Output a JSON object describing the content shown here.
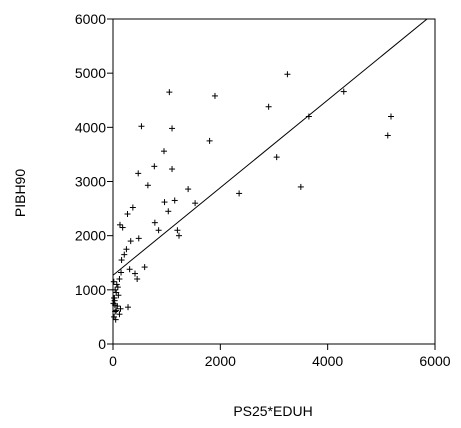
{
  "chart_data": {
    "type": "scatter",
    "title": "",
    "xlabel": "PS25*EDUH",
    "ylabel": "PIBH90",
    "xlim": [
      0,
      6000
    ],
    "ylim": [
      0,
      6000
    ],
    "x_ticks": [
      0,
      2000,
      4000,
      6000
    ],
    "y_ticks": [
      0,
      1000,
      2000,
      3000,
      4000,
      5000,
      6000
    ],
    "grid": false,
    "marker": "+",
    "fit_line": {
      "x": [
        0,
        6000
      ],
      "y": [
        1270,
        6120
      ]
    },
    "series": [
      {
        "x": [
          1050,
          1900,
          3250,
          2900,
          4300,
          3650,
          5180,
          5120,
          530,
          1100,
          1800,
          3050,
          3500,
          2350,
          950,
          770,
          1100,
          650,
          470,
          1400,
          1150,
          960,
          780,
          1530,
          1030,
          1200,
          1230,
          850,
          370,
          130,
          180,
          480,
          270,
          330,
          250,
          210,
          160,
          590,
          410,
          310,
          150,
          450,
          120,
          70,
          40,
          60,
          100,
          20,
          30,
          10,
          80,
          140,
          40,
          120,
          20,
          50,
          90,
          15,
          25,
          35,
          60,
          280
        ],
        "y": [
          4650,
          4580,
          4980,
          4380,
          4660,
          4200,
          4200,
          3850,
          4020,
          3980,
          3750,
          3450,
          2900,
          2780,
          3560,
          3280,
          3230,
          2930,
          3150,
          2860,
          2650,
          2620,
          2240,
          2600,
          2450,
          2100,
          2000,
          2100,
          2520,
          2200,
          2150,
          1950,
          2400,
          1900,
          1750,
          1650,
          1550,
          1420,
          1300,
          1380,
          1320,
          1200,
          1200,
          1100,
          1000,
          950,
          900,
          850,
          800,
          750,
          700,
          650,
          600,
          550,
          500,
          450,
          1050,
          1150,
          850,
          720,
          620,
          680
        ]
      }
    ]
  }
}
